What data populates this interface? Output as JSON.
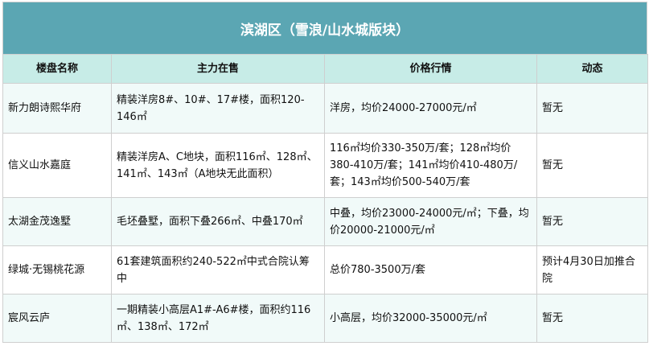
{
  "title": "滨湖区（雪浪/山水城版块）",
  "colors": {
    "title_bg": "#5ba6b3",
    "header_bg": "#c7ece7",
    "odd_row_bg": "#f1faf9"
  },
  "headers": [
    "楼盘名称",
    "主力在售",
    "价格行情",
    "动态"
  ],
  "rows": [
    [
      "新力朗诗熙华府",
      "精装洋房8#、10#、17#楼，面积120-146㎡",
      "洋房，均价24000-27000元/㎡",
      "暂无"
    ],
    [
      "信义山水嘉庭",
      "精装洋房A、C地块，面积116㎡、128㎡、141㎡、143㎡（A地块无此面积）",
      "116㎡均价330-350万/套；128㎡均价380-410万/套；141㎡均价410-480万/套；143㎡均价500-540万/套",
      "暂无"
    ],
    [
      "太湖金茂逸墅",
      "毛坯叠墅，面积下叠266㎡、中叠170㎡",
      "中叠，均价23000-24000元/㎡；下叠，均价20000-21000元/㎡",
      "暂无"
    ],
    [
      "绿城·无锡桃花源",
      "61套建筑面积约240-522㎡中式合院认筹中",
      "总价780-3500万/套",
      "预计4月30日加推合院"
    ],
    [
      "宸风云庐",
      "一期精装小高层A1#-A6#楼，面积约116㎡、138㎡、172㎡",
      "小高层，均价32000-35000元/㎡",
      "暂无"
    ]
  ]
}
